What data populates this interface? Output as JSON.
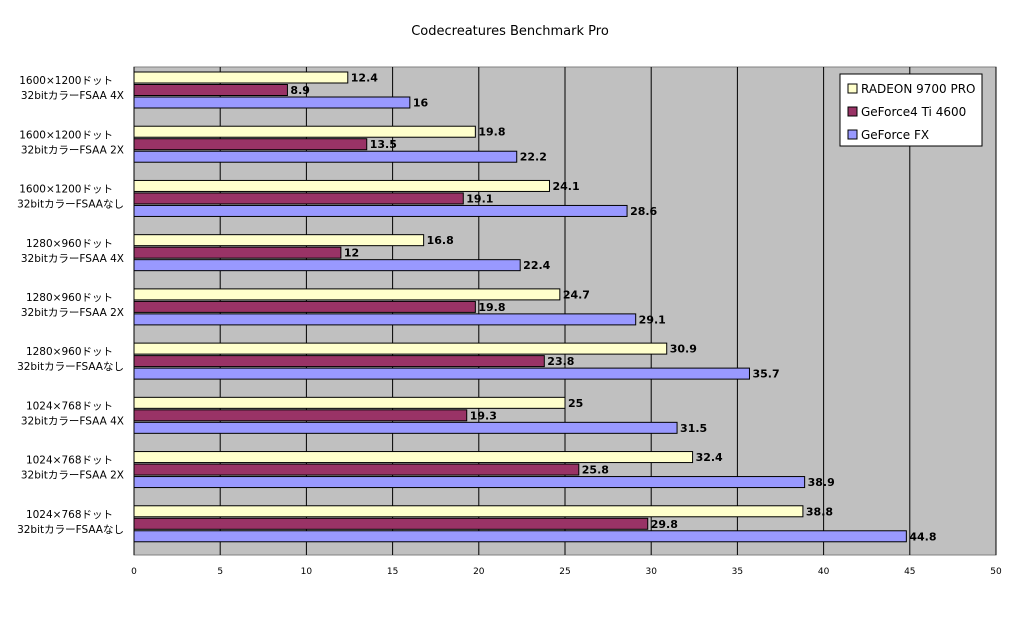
{
  "chart_data": {
    "type": "bar",
    "orientation": "horizontal",
    "title": "Codecreatures Benchmark Pro",
    "xlim": [
      0,
      50
    ],
    "xticks": [
      0,
      5,
      10,
      15,
      20,
      25,
      30,
      35,
      40,
      45,
      50
    ],
    "grid": true,
    "legend_position": "top-right",
    "categories": [
      [
        "1600×1200ドット",
        "32bitカラーFSAA 4X"
      ],
      [
        "1600×1200ドット",
        "32bitカラーFSAA 2X"
      ],
      [
        "1600×1200ドット",
        "32bitカラーFSAAなし"
      ],
      [
        "1280×960ドット",
        "32bitカラーFSAA 4X"
      ],
      [
        "1280×960ドット",
        "32bitカラーFSAA 2X"
      ],
      [
        "1280×960ドット",
        "32bitカラーFSAAなし"
      ],
      [
        "1024×768ドット",
        "32bitカラーFSAA 4X"
      ],
      [
        "1024×768ドット",
        "32bitカラーFSAA 2X"
      ],
      [
        "1024×768ドット",
        "32bitカラーFSAAなし"
      ]
    ],
    "series": [
      {
        "name": "RADEON 9700 PRO",
        "color": "#ffffcc",
        "values": [
          12.4,
          19.8,
          24.1,
          16.8,
          24.7,
          30.9,
          25,
          32.4,
          38.8
        ]
      },
      {
        "name": "GeForce4 Ti 4600",
        "color": "#993366",
        "values": [
          8.9,
          13.5,
          19.1,
          12,
          19.8,
          23.8,
          19.3,
          25.8,
          29.8
        ]
      },
      {
        "name": "GeForce FX",
        "color": "#9999ff",
        "values": [
          16,
          22.2,
          28.6,
          22.4,
          29.1,
          35.7,
          31.5,
          38.9,
          44.8
        ]
      }
    ],
    "colors": {
      "plot_background": "#c0c0c0",
      "gridline": "#000000"
    }
  }
}
